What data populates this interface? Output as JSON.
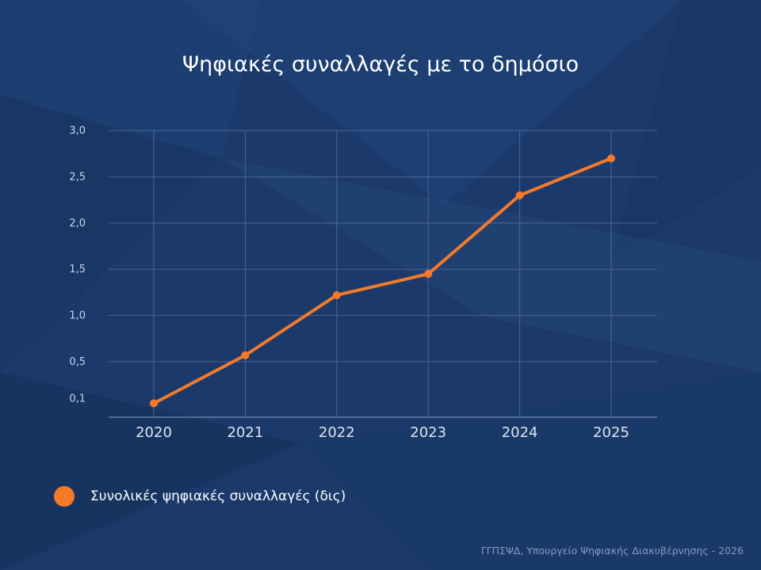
{
  "colors": {
    "background": "#1b3a6b",
    "series": "#f47a2a",
    "grid": "#5a74a3"
  },
  "chart_data": {
    "type": "line",
    "title": "Ψηφιακές συναλλαγές με το δημόσιο",
    "x": [
      "2020",
      "2021",
      "2022",
      "2023",
      "2024",
      "2025"
    ],
    "series": [
      {
        "name": "Συνολικές ψηφιακές συναλλαγές (δις)",
        "values": [
          0.05,
          0.57,
          1.22,
          1.45,
          2.3,
          2.7
        ]
      }
    ],
    "yticks": [
      {
        "value": 0.1,
        "label": "0,1"
      },
      {
        "value": 0.5,
        "label": "0,5"
      },
      {
        "value": 1.0,
        "label": "1,0"
      },
      {
        "value": 1.5,
        "label": "1,5"
      },
      {
        "value": 2.0,
        "label": "2,0"
      },
      {
        "value": 2.5,
        "label": "2,5"
      },
      {
        "value": 3.0,
        "label": "3,0"
      }
    ],
    "ylim": [
      -0.1,
      3.0
    ],
    "grid": true,
    "legend_position": "bottom-left"
  },
  "footer": {
    "source": "ΓΓΠΣΨΔ, Υπουργείο Ψηφιακής Διακυβέρνησης - 2026"
  }
}
